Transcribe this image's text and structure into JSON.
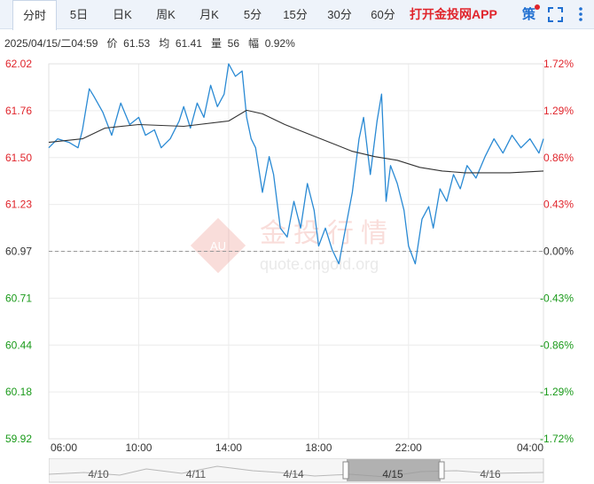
{
  "tabs": [
    {
      "label": "分时",
      "active": true
    },
    {
      "label": "5日",
      "active": false
    },
    {
      "label": "日K",
      "active": false
    },
    {
      "label": "周K",
      "active": false
    },
    {
      "label": "月K",
      "active": false
    },
    {
      "label": "5分",
      "active": false
    },
    {
      "label": "15分",
      "active": false
    },
    {
      "label": "30分",
      "active": false
    },
    {
      "label": "60分",
      "active": false
    }
  ],
  "promo_label": "打开金投网APP",
  "strategy_label": "策",
  "info": {
    "datetime": "2025/04/15/二04:59",
    "price_label": "价",
    "price": "61.53",
    "avg_label": "均",
    "avg": "61.41",
    "volume_label": "量",
    "volume": "56",
    "change_label": "幅",
    "change": "0.92%"
  },
  "watermark": {
    "cn": "金投行情",
    "url": "quote.cngold.org",
    "badge": "AU"
  },
  "colors": {
    "up": "#e0242b",
    "down": "#1a9a1a",
    "price_line": "#2a8ad4",
    "avg_line": "#333333",
    "ref_line": "#999999"
  },
  "chart_data": {
    "type": "line",
    "reference_price": 60.97,
    "ylim": [
      59.92,
      62.02
    ],
    "y_ticks": [
      "62.02",
      "61.76",
      "61.50",
      "61.23",
      "60.97",
      "60.71",
      "60.44",
      "60.18",
      "59.92"
    ],
    "pct_ticks": [
      "1.72%",
      "1.29%",
      "0.86%",
      "0.43%",
      "0.00%",
      "-0.43%",
      "-0.86%",
      "-1.29%",
      "-1.72%"
    ],
    "x_ticks": [
      "06:00",
      "10:00",
      "14:00",
      "18:00",
      "22:00",
      "04:00"
    ],
    "x_hours": [
      0,
      4,
      8,
      12,
      16,
      22
    ],
    "xlim_hours": [
      0,
      22
    ],
    "series": [
      {
        "name": "价",
        "x_hours": [
          0,
          0.4,
          0.9,
          1.3,
          1.5,
          1.8,
          2.0,
          2.4,
          2.8,
          3.2,
          3.6,
          4.0,
          4.3,
          4.7,
          5.0,
          5.4,
          5.8,
          6.0,
          6.3,
          6.6,
          6.9,
          7.2,
          7.5,
          7.8,
          8.0,
          8.3,
          8.6,
          8.8,
          9.0,
          9.2,
          9.5,
          9.8,
          10.0,
          10.3,
          10.6,
          10.9,
          11.2,
          11.5,
          11.8,
          12.0,
          12.3,
          12.6,
          12.9,
          13.2,
          13.5,
          13.8,
          14.0,
          14.3,
          14.6,
          14.8,
          15.0,
          15.2,
          15.5,
          15.8,
          16.0,
          16.3,
          16.6,
          16.9,
          17.1,
          17.4,
          17.7,
          18.0,
          18.3,
          18.6,
          19.0,
          19.4,
          19.8,
          20.2,
          20.6,
          21.0,
          21.4,
          21.8,
          22.0
        ],
        "values": [
          61.55,
          61.6,
          61.58,
          61.55,
          61.65,
          61.88,
          61.84,
          61.75,
          61.62,
          61.8,
          61.68,
          61.72,
          61.62,
          61.65,
          61.55,
          61.6,
          61.7,
          61.78,
          61.66,
          61.8,
          61.72,
          61.9,
          61.78,
          61.85,
          62.02,
          61.95,
          61.98,
          61.72,
          61.6,
          61.55,
          61.3,
          61.5,
          61.4,
          61.1,
          61.05,
          61.25,
          61.1,
          61.35,
          61.2,
          61.0,
          61.1,
          60.98,
          60.9,
          61.1,
          61.3,
          61.6,
          61.72,
          61.4,
          61.7,
          61.85,
          61.25,
          61.45,
          61.35,
          61.2,
          61.0,
          60.9,
          61.15,
          61.22,
          61.1,
          61.32,
          61.25,
          61.4,
          61.32,
          61.45,
          61.38,
          61.5,
          61.6,
          61.52,
          61.62,
          61.55,
          61.6,
          61.52,
          61.6
        ]
      },
      {
        "name": "均",
        "x_hours": [
          0,
          1.5,
          2.5,
          4,
          6,
          8,
          8.8,
          9.5,
          10.5,
          11.5,
          12.5,
          13.5,
          14.5,
          15.5,
          16.5,
          17.5,
          18.5,
          19.5,
          20.5,
          22
        ],
        "values": [
          61.58,
          61.6,
          61.66,
          61.68,
          61.67,
          61.7,
          61.76,
          61.74,
          61.68,
          61.63,
          61.58,
          61.53,
          61.5,
          61.48,
          61.44,
          61.42,
          61.41,
          61.41,
          61.41,
          61.42
        ]
      }
    ]
  },
  "navigator": {
    "dates": [
      "4/10",
      "4/11",
      "4/14",
      "4/15",
      "4/16"
    ],
    "selected": "4/15"
  }
}
